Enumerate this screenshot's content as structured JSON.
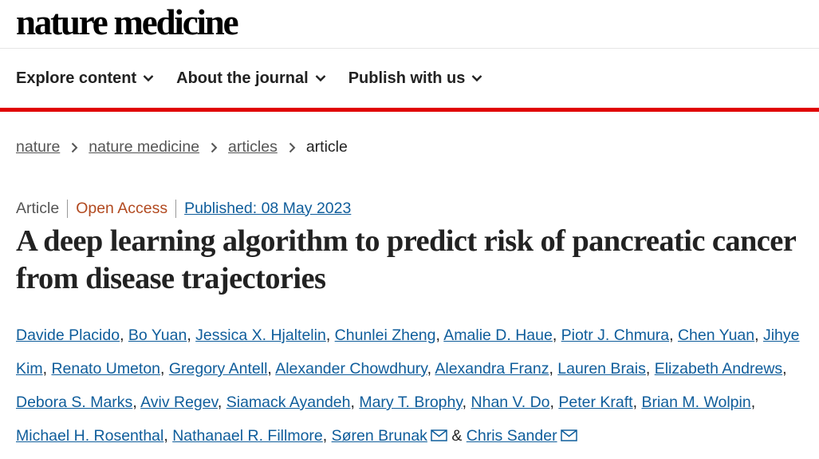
{
  "header": {
    "logo": "nature medicine",
    "nav": [
      {
        "label": "Explore content",
        "icon": "chevron-down-icon"
      },
      {
        "label": "About the journal",
        "icon": "chevron-down-icon"
      },
      {
        "label": "Publish with us",
        "icon": "chevron-down-icon"
      }
    ],
    "accent_color": "#e00000"
  },
  "breadcrumb": {
    "items": [
      "nature",
      "nature medicine",
      "articles"
    ],
    "current": "article",
    "separator_icon": "chevron-right-icon"
  },
  "article": {
    "type": "Article",
    "access": "Open Access",
    "published": "Published: 08 May 2023",
    "title": "A deep learning algorithm to predict risk of pancreatic cancer from disease trajectories",
    "authors": [
      "Davide Placido",
      "Bo Yuan",
      "Jessica X. Hjaltelin",
      "Chunlei Zheng",
      "Amalie D. Haue",
      "Piotr J. Chmura",
      "Chen Yuan",
      "Jihye Kim",
      "Renato Umeton",
      "Gregory Antell",
      "Alexander Chowdhury",
      "Alexandra Franz",
      "Lauren Brais",
      "Elizabeth Andrews",
      "Debora S. Marks",
      "Aviv Regev",
      "Siamack Ayandeh",
      "Mary T. Brophy",
      "Nhan V. Do",
      "Peter Kraft",
      "Brian M. Wolpin",
      "Michael H. Rosenthal",
      "Nathanael R. Fillmore",
      "Søren Brunak",
      "Chris Sander"
    ],
    "author_conjunction": "&",
    "author_icon": "mail-icon",
    "link_color": "#0f5d9b",
    "open_access_color": "#b24a20"
  }
}
